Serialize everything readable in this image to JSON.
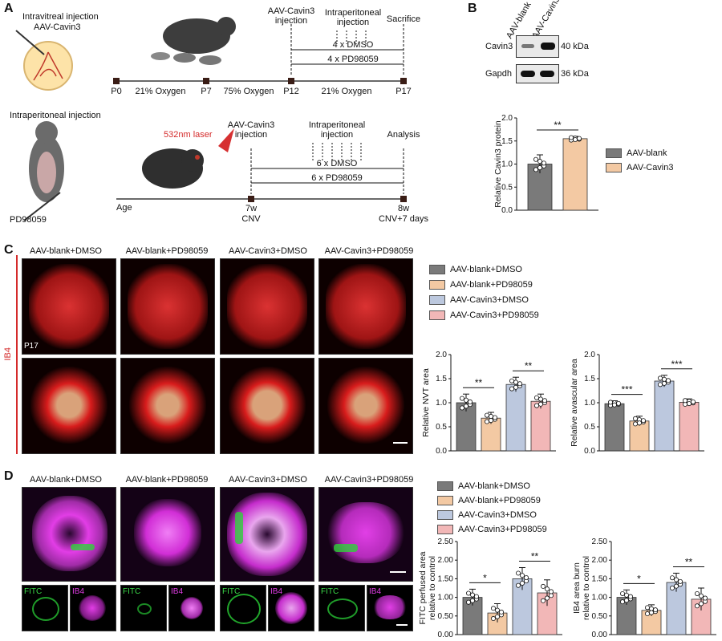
{
  "colors": {
    "blank": "#7a7a7a",
    "blank_pd": "#f3c9a3",
    "cav": "#bcc8de",
    "cav_pd": "#f2b7b7",
    "red": "#d42a2a",
    "line": "#111111"
  },
  "panelA": {
    "letter": "A",
    "inj1_line1": "Intravitreal injection",
    "inj1_line2": "AAV-Cavin3",
    "t1_aav1": "AAV-Cavin3",
    "t1_aav2": "injection",
    "t1_ip1": "Intraperitoneal",
    "t1_ip2": "injection",
    "t1_sac": "Sacrifice",
    "t1_dmso": "4 x DMSO",
    "t1_pd": "4 x PD98059",
    "t1_p0": "P0",
    "t1_p7": "P7",
    "t1_p12": "P12",
    "t1_p17": "P17",
    "t1_o1": "21% Oxygen",
    "t1_o2": "75% Oxygen",
    "t1_o3": "21% Oxygen",
    "inj2": "Intraperitoneal injection",
    "drug": "PD98059",
    "laser": "532nm laser",
    "t2_aav1": "AAV-Cavin3",
    "t2_aav2": "injection",
    "t2_ip1": "Intraperitoneal",
    "t2_ip2": "injection",
    "t2_an": "Analysis",
    "t2_dmso": "6 x DMSO",
    "t2_pd": "6 x PD98059",
    "t2_age": "Age",
    "t2_7w": "7w",
    "t2_cnv": "CNV",
    "t2_8w": "8w",
    "t2_cnv7": "CNV+7 days"
  },
  "panelB": {
    "letter": "B",
    "lane1": "AAV-blank",
    "lane2": "AAV-Cavin3",
    "band1": "Cavin3",
    "band1_kda": "40 kDa",
    "band2": "Gapdh",
    "band2_kda": "36 kDa",
    "legend": [
      "AAV-blank",
      "AAV-Cavin3"
    ]
  },
  "panelC": {
    "letter": "C",
    "side": "IB4",
    "p17": "P17",
    "columns": [
      "AAV-blank+DMSO",
      "AAV-blank+PD98059",
      "AAV-Cavin3+DMSO",
      "AAV-Cavin3+PD98059"
    ],
    "legend": [
      "AAV-blank+DMSO",
      "AAV-blank+PD98059",
      "AAV-Cavin3+DMSO",
      "AAV-Cavin3+PD98059"
    ]
  },
  "panelD": {
    "letter": "D",
    "columns": [
      "AAV-blank+DMSO",
      "AAV-blank+PD98059",
      "AAV-Cavin3+DMSO",
      "AAV-Cavin3+PD98059"
    ],
    "small": [
      "FITC",
      "IB4",
      "FITC",
      "IB4",
      "FITC",
      "IB4",
      "FITC",
      "IB4"
    ],
    "legend": [
      "AAV-blank+DMSO",
      "AAV-blank+PD98059",
      "AAV-Cavin3+DMSO",
      "AAV-Cavin3+PD98059"
    ]
  },
  "chart_data": [
    {
      "type": "bar",
      "id": "cavin3",
      "categories": [
        "AAV-blank",
        "AAV-Cavin3"
      ],
      "values": [
        1.0,
        1.55
      ],
      "errors": [
        0.2,
        0.05
      ],
      "ylabel": "Relative Cavin3 protein",
      "ylim": [
        0,
        2.0
      ],
      "yticks": [
        "0.0",
        "0.5",
        "1.0",
        "1.5",
        "2.0"
      ],
      "sig": [
        {
          "label": "**",
          "from": 0,
          "to": 1
        }
      ]
    },
    {
      "type": "bar",
      "id": "nvt",
      "categories": [
        "AAV-blank+DMSO",
        "AAV-blank+PD98059",
        "AAV-Cavin3+DMSO",
        "AAV-Cavin3+PD98059"
      ],
      "values": [
        1.0,
        0.68,
        1.38,
        1.03
      ],
      "errors": [
        0.18,
        0.12,
        0.15,
        0.15
      ],
      "ylabel": "Relative NVT area",
      "ylim": [
        0,
        2.0
      ],
      "yticks": [
        "0.0",
        "0.5",
        "1.0",
        "1.5",
        "2.0"
      ],
      "sig": [
        {
          "label": "**",
          "from": 0,
          "to": 1
        },
        {
          "label": "**",
          "from": 2,
          "to": 3
        }
      ]
    },
    {
      "type": "bar",
      "id": "avasc",
      "categories": [
        "AAV-blank+DMSO",
        "AAV-blank+PD98059",
        "AAV-Cavin3+DMSO",
        "AAV-Cavin3+PD98059"
      ],
      "values": [
        0.98,
        0.62,
        1.45,
        1.01
      ],
      "errors": [
        0.06,
        0.1,
        0.12,
        0.07
      ],
      "ylabel": "Relative avascular area",
      "ylim": [
        0,
        2.0
      ],
      "yticks": [
        "0.0",
        "0.5",
        "1.0",
        "1.5",
        "2.0"
      ],
      "sig": [
        {
          "label": "***",
          "from": 0,
          "to": 1
        },
        {
          "label": "***",
          "from": 2,
          "to": 3
        }
      ]
    },
    {
      "type": "bar",
      "id": "fitc",
      "categories": [
        "AAV-blank+DMSO",
        "AAV-blank+PD98059",
        "AAV-Cavin3+DMSO",
        "AAV-Cavin3+PD98059"
      ],
      "values": [
        1.0,
        0.58,
        1.5,
        1.12
      ],
      "errors": [
        0.22,
        0.25,
        0.3,
        0.35
      ],
      "ylabel": "FITC perfused area",
      "ylabel2": "relative to control",
      "ylim": [
        0,
        2.5
      ],
      "yticks": [
        "0.00",
        "0.50",
        "1.00",
        "1.50",
        "2.00",
        "2.50"
      ],
      "sig": [
        {
          "label": "*",
          "from": 0,
          "to": 1
        },
        {
          "label": "**",
          "from": 2,
          "to": 3
        }
      ]
    },
    {
      "type": "bar",
      "id": "ib4",
      "categories": [
        "AAV-blank+DMSO",
        "AAV-blank+PD98059",
        "AAV-Cavin3+DMSO",
        "AAV-Cavin3+PD98059"
      ],
      "values": [
        1.0,
        0.65,
        1.4,
        0.95
      ],
      "errors": [
        0.2,
        0.15,
        0.25,
        0.3
      ],
      "ylabel": "IB4 area burn",
      "ylabel2": "relative to control",
      "ylim": [
        0,
        2.5
      ],
      "yticks": [
        "0.00",
        "0.50",
        "1.00",
        "1.50",
        "2.00",
        "2.50"
      ],
      "sig": [
        {
          "label": "*",
          "from": 0,
          "to": 1
        },
        {
          "label": "**",
          "from": 2,
          "to": 3
        }
      ]
    }
  ]
}
